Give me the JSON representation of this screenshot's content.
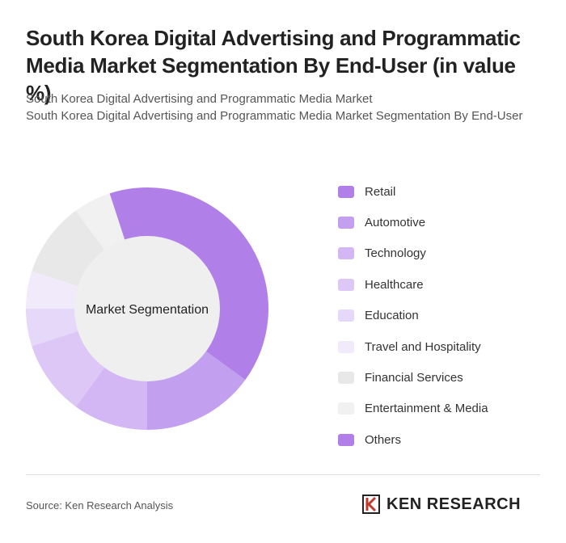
{
  "chart_data": {
    "type": "donut",
    "title": "South Korea Digital Advertising and Programmatic Media Market Segmentation By End-User (in value %)",
    "subtitle": [
      "South Korea Digital Advertising and Programmatic Media Market",
      "South Korea Digital Advertising and Programmatic Media Market Segmentation By End-User"
    ],
    "center_label": "Market Segmentation",
    "categories": [
      "Retail",
      "Automotive",
      "Technology",
      "Healthcare",
      "Education",
      "Travel and Hospitality",
      "Financial Services",
      "Entertainment & Media",
      "Others"
    ],
    "values": [
      35,
      15,
      10,
      10,
      5,
      5,
      10,
      5,
      5
    ],
    "colors": [
      "#b07fe8",
      "#c39ff0",
      "#d3b7f4",
      "#dcc7f6",
      "#e6d8f8",
      "#f1eafb",
      "#e8e8e8",
      "#f1f1f1",
      "#b07fe8"
    ],
    "source": "Source: Ken Research Analysis",
    "logo": "KEN RESEARCH"
  }
}
